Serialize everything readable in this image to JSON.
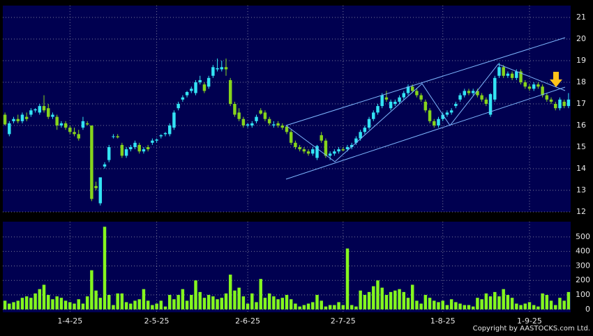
{
  "chart_data": {
    "type": "candlestick",
    "xlim": [
      -0.5,
      130.5
    ],
    "xticks": [
      {
        "value": 15,
        "label": "1-4-25"
      },
      {
        "value": 35,
        "label": "2-5-25"
      },
      {
        "value": 56,
        "label": "2-6-25"
      },
      {
        "value": 78,
        "label": "2-7-25"
      },
      {
        "value": 101,
        "label": "1-8-25"
      },
      {
        "value": 121,
        "label": "1-9-25"
      }
    ],
    "ylim": [
      12,
      21.55
    ],
    "yticks": [
      12,
      13,
      14,
      15,
      16,
      17,
      18,
      19,
      20,
      21
    ],
    "grid": true,
    "up_color": "#33e4f4",
    "down_color": "#86d41c",
    "open": [
      16.5,
      15.6,
      16.2,
      16.3,
      16.2,
      16.4,
      16.5,
      16.7,
      16.6,
      16.9,
      16.8,
      16.4,
      16.4,
      16.0,
      16.1,
      15.9,
      15.7,
      15.6,
      15.9,
      16.1,
      16.0,
      13.2,
      12.4,
      14.1,
      14.4,
      15.5,
      15.5,
      15.1,
      14.6,
      14.9,
      15.0,
      15.1,
      14.8,
      15.0,
      15.2,
      15.3,
      15.5,
      15.6,
      15.6,
      15.9,
      16.8,
      17.2,
      17.4,
      17.6,
      17.5,
      18.0,
      17.9,
      17.8,
      18.3,
      18.6,
      18.6,
      18.7,
      18.1,
      17.0,
      16.6,
      16.3,
      16.0,
      16.0,
      16.2,
      16.7,
      16.6,
      16.3,
      16.0,
      16.1,
      16.0,
      15.95,
      15.7,
      15.2,
      15.0,
      14.9,
      14.8,
      14.7,
      14.5,
      15.55,
      15.3,
      14.6,
      14.7,
      14.8,
      14.9,
      14.9,
      15.0,
      15.2,
      15.4,
      15.7,
      15.9,
      16.3,
      16.6,
      16.9,
      17.3,
      16.8,
      17.0,
      17.1,
      17.3,
      17.5,
      17.8,
      17.6,
      17.4,
      17.1,
      16.7,
      16.2,
      16.0,
      16.3,
      16.5,
      16.6,
      16.9,
      17.2,
      17.4,
      17.6,
      17.5,
      17.6,
      17.4,
      17.2,
      16.5,
      17.2,
      18.3,
      18.7,
      18.3,
      18.4,
      18.2,
      18.5,
      18.0,
      17.8,
      17.7,
      17.9,
      17.8,
      17.4,
      17.2,
      17.0,
      16.8,
      17.1,
      16.9
    ],
    "high": [
      16.6,
      16.2,
      16.4,
      16.5,
      16.6,
      16.6,
      16.8,
      16.8,
      17.0,
      17.4,
      17.0,
      16.6,
      16.5,
      16.2,
      16.2,
      16.0,
      15.9,
      15.8,
      16.4,
      16.2,
      16.0,
      13.4,
      13.6,
      14.3,
      15.1,
      15.6,
      15.6,
      15.2,
      15.0,
      15.1,
      15.3,
      15.2,
      15.0,
      15.1,
      15.4,
      15.4,
      15.6,
      15.7,
      16.1,
      16.7,
      17.1,
      17.4,
      17.6,
      17.8,
      18.1,
      18.3,
      18.0,
      18.3,
      18.8,
      19.1,
      19.0,
      19.1,
      18.2,
      17.1,
      16.8,
      16.4,
      16.1,
      16.2,
      16.5,
      16.8,
      16.7,
      16.4,
      16.2,
      16.2,
      16.1,
      16.0,
      15.8,
      15.3,
      15.1,
      15.0,
      14.9,
      15.0,
      15.1,
      15.7,
      15.4,
      14.8,
      14.9,
      15.0,
      15.0,
      15.1,
      15.2,
      15.5,
      15.8,
      16.0,
      16.4,
      16.7,
      17.0,
      17.5,
      17.6,
      17.2,
      17.2,
      17.4,
      17.6,
      17.9,
      17.9,
      17.7,
      17.5,
      17.2,
      16.8,
      16.3,
      16.4,
      16.6,
      16.7,
      16.8,
      17.1,
      17.5,
      17.7,
      17.7,
      17.7,
      17.7,
      17.5,
      17.3,
      17.5,
      18.3,
      18.9,
      18.8,
      18.5,
      18.5,
      18.6,
      18.6,
      18.1,
      17.9,
      18.0,
      18.0,
      17.9,
      17.5,
      17.3,
      17.1,
      17.3,
      17.2,
      17.5
    ],
    "low": [
      16.0,
      15.5,
      16.1,
      16.1,
      16.1,
      16.2,
      16.4,
      16.6,
      16.5,
      16.6,
      16.3,
      16.3,
      15.8,
      15.9,
      15.8,
      15.6,
      15.5,
      15.3,
      15.8,
      16.0,
      12.5,
      13.0,
      12.3,
      14.0,
      14.3,
      15.4,
      15.4,
      14.5,
      14.5,
      14.8,
      14.9,
      14.7,
      14.7,
      14.8,
      15.1,
      15.2,
      15.4,
      15.5,
      15.5,
      15.8,
      16.7,
      17.1,
      17.3,
      17.5,
      17.4,
      17.9,
      17.5,
      17.7,
      18.2,
      18.5,
      18.5,
      18.3,
      16.9,
      16.4,
      16.2,
      15.9,
      15.9,
      15.9,
      16.1,
      16.5,
      16.2,
      16.0,
      15.9,
      15.9,
      15.8,
      15.6,
      15.1,
      14.9,
      14.8,
      14.7,
      14.6,
      14.6,
      14.4,
      15.2,
      14.5,
      14.4,
      14.6,
      14.7,
      14.8,
      14.8,
      14.9,
      15.1,
      15.3,
      15.6,
      15.8,
      16.2,
      16.5,
      16.8,
      17.1,
      16.7,
      16.9,
      17.0,
      17.2,
      17.4,
      17.5,
      17.3,
      17.1,
      16.6,
      16.1,
      15.9,
      15.9,
      16.2,
      16.4,
      16.5,
      16.8,
      17.1,
      17.3,
      17.4,
      17.4,
      17.3,
      17.1,
      16.9,
      16.4,
      17.1,
      18.2,
      18.2,
      18.2,
      18.1,
      18.1,
      17.9,
      17.7,
      17.6,
      17.6,
      17.7,
      17.3,
      17.1,
      17.0,
      16.7,
      16.7,
      16.8,
      16.8
    ],
    "close": [
      16.05,
      16.1,
      16.3,
      16.2,
      16.5,
      16.3,
      16.7,
      16.75,
      16.9,
      16.7,
      16.4,
      16.5,
      16.0,
      16.1,
      15.9,
      15.7,
      15.6,
      15.4,
      16.2,
      16.05,
      12.6,
      13.1,
      13.6,
      14.2,
      15.0,
      15.5,
      15.45,
      14.6,
      14.9,
      15.0,
      15.2,
      14.8,
      14.9,
      14.9,
      15.3,
      15.35,
      15.55,
      15.65,
      16.0,
      16.6,
      17.0,
      17.3,
      17.55,
      17.7,
      18.0,
      18.1,
      17.6,
      18.2,
      18.7,
      18.65,
      18.7,
      18.6,
      17.0,
      16.5,
      16.3,
      16.0,
      16.05,
      16.1,
      16.4,
      16.55,
      16.3,
      16.1,
      16.05,
      16.0,
      15.9,
      15.7,
      15.2,
      15.0,
      14.9,
      14.8,
      14.7,
      14.9,
      15.05,
      15.3,
      14.6,
      14.7,
      14.8,
      14.9,
      14.85,
      15.0,
      15.1,
      15.4,
      15.7,
      15.9,
      16.3,
      16.6,
      16.9,
      17.4,
      17.2,
      17.1,
      17.1,
      17.3,
      17.5,
      17.8,
      17.6,
      17.4,
      17.2,
      16.7,
      16.2,
      16.0,
      16.3,
      16.5,
      16.6,
      16.7,
      17.0,
      17.4,
      17.6,
      17.5,
      17.6,
      17.4,
      17.2,
      17.0,
      17.45,
      18.2,
      18.7,
      18.3,
      18.4,
      18.2,
      18.5,
      18.0,
      17.8,
      17.7,
      17.9,
      17.8,
      17.4,
      17.2,
      17.1,
      16.8,
      17.2,
      16.9,
      17.2
    ],
    "volume": [
      60,
      40,
      50,
      60,
      80,
      90,
      80,
      110,
      140,
      170,
      100,
      70,
      90,
      80,
      60,
      50,
      40,
      70,
      40,
      90,
      270,
      130,
      80,
      570,
      100,
      30,
      110,
      110,
      50,
      40,
      60,
      70,
      140,
      60,
      30,
      40,
      60,
      20,
      100,
      70,
      100,
      140,
      60,
      100,
      200,
      120,
      80,
      100,
      90,
      70,
      80,
      110,
      240,
      130,
      150,
      90,
      40,
      110,
      50,
      210,
      80,
      110,
      90,
      70,
      80,
      100,
      70,
      40,
      20,
      30,
      40,
      50,
      100,
      60,
      20,
      30,
      30,
      50,
      30,
      420,
      30,
      20,
      130,
      100,
      120,
      160,
      200,
      150,
      100,
      120,
      130,
      140,
      120,
      80,
      170,
      60,
      40,
      100,
      80,
      60,
      50,
      60,
      30,
      70,
      50,
      40,
      30,
      30,
      20,
      80,
      70,
      110,
      90,
      120,
      90,
      140,
      100,
      80,
      40,
      30,
      40,
      50,
      30,
      20,
      110,
      100,
      60,
      30,
      80,
      60,
      120
    ],
    "volume_color": "#84f61e",
    "volume_ylim": [
      -20,
      605
    ],
    "volume_yticks": [
      0,
      100,
      200,
      300,
      400,
      500
    ],
    "source": "Copyright by AASTOCKS.com Ltd."
  }
}
